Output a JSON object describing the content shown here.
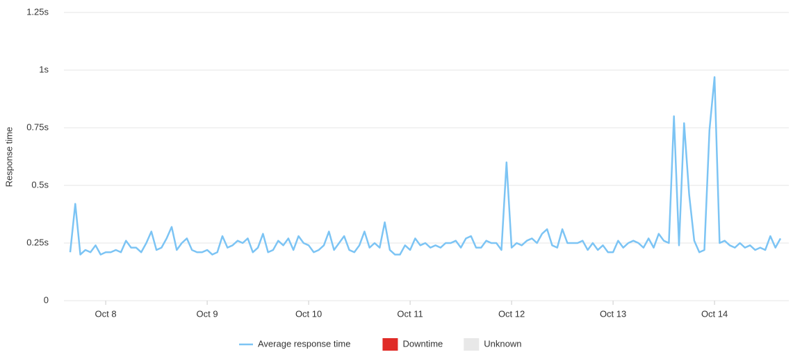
{
  "chart_data": {
    "type": "line",
    "y_label": "Response time",
    "ylim": [
      0,
      1.25
    ],
    "yticks": [
      0,
      {
        "value": 0.25,
        "label": "0.25s"
      },
      {
        "value": 0.5,
        "label": "0.5s"
      },
      {
        "value": 0.75,
        "label": "0.75s"
      },
      {
        "value": 1,
        "label": "1s"
      },
      {
        "value": 1.25,
        "label": "1.25s"
      }
    ],
    "grid": true,
    "categories": [
      null,
      null,
      null,
      null,
      null,
      null,
      null,
      "Oct 8",
      null,
      null,
      null,
      null,
      null,
      null,
      null,
      null,
      null,
      null,
      null,
      null,
      null,
      null,
      null,
      null,
      null,
      null,
      null,
      "Oct 9",
      null,
      null,
      null,
      null,
      null,
      null,
      null,
      null,
      null,
      null,
      null,
      null,
      null,
      null,
      null,
      null,
      null,
      null,
      null,
      "Oct 10",
      null,
      null,
      null,
      null,
      null,
      null,
      null,
      null,
      null,
      null,
      null,
      null,
      null,
      null,
      null,
      null,
      null,
      null,
      null,
      "Oct 11",
      null,
      null,
      null,
      null,
      null,
      null,
      null,
      null,
      null,
      null,
      null,
      null,
      null,
      null,
      null,
      null,
      null,
      null,
      null,
      "Oct 12",
      null,
      null,
      null,
      null,
      null,
      null,
      null,
      null,
      null,
      null,
      null,
      null,
      null,
      null,
      null,
      null,
      null,
      null,
      null,
      "Oct 13",
      null,
      null,
      null,
      null,
      null,
      null,
      null,
      null,
      null,
      null,
      null,
      null,
      null,
      null,
      null,
      null,
      null,
      null,
      null,
      "Oct 14",
      null,
      null,
      null,
      null,
      null,
      null,
      null,
      null,
      null,
      null,
      null,
      null,
      null
    ],
    "series": [
      {
        "name": "Average response time",
        "color": "#7cc4f4",
        "values": [
          0.21,
          0.42,
          0.2,
          0.22,
          0.21,
          0.24,
          0.2,
          0.21,
          0.21,
          0.22,
          0.21,
          0.26,
          0.23,
          0.23,
          0.21,
          0.25,
          0.3,
          0.22,
          0.23,
          0.27,
          0.32,
          0.22,
          0.25,
          0.27,
          0.22,
          0.21,
          0.21,
          0.22,
          0.2,
          0.21,
          0.28,
          0.23,
          0.24,
          0.26,
          0.25,
          0.27,
          0.21,
          0.23,
          0.29,
          0.21,
          0.22,
          0.26,
          0.24,
          0.27,
          0.22,
          0.28,
          0.25,
          0.24,
          0.21,
          0.22,
          0.24,
          0.3,
          0.22,
          0.25,
          0.28,
          0.22,
          0.21,
          0.24,
          0.3,
          0.23,
          0.25,
          0.23,
          0.34,
          0.22,
          0.2,
          0.2,
          0.24,
          0.22,
          0.27,
          0.24,
          0.25,
          0.23,
          0.24,
          0.23,
          0.25,
          0.25,
          0.26,
          0.23,
          0.27,
          0.28,
          0.23,
          0.23,
          0.26,
          0.25,
          0.25,
          0.22,
          0.6,
          0.23,
          0.25,
          0.24,
          0.26,
          0.27,
          0.25,
          0.29,
          0.31,
          0.24,
          0.23,
          0.31,
          0.25,
          0.25,
          0.25,
          0.26,
          0.22,
          0.25,
          0.22,
          0.24,
          0.21,
          0.21,
          0.26,
          0.23,
          0.25,
          0.26,
          0.25,
          0.23,
          0.27,
          0.23,
          0.29,
          0.26,
          0.25,
          0.8,
          0.24,
          0.77,
          0.46,
          0.26,
          0.21,
          0.22,
          0.74,
          0.97,
          0.25,
          0.26,
          0.24,
          0.23,
          0.25,
          0.23,
          0.24,
          0.22,
          0.23,
          0.22,
          0.28,
          0.23,
          0.27
        ]
      }
    ],
    "legend_items": [
      {
        "name": "Downtime",
        "color": "#e02b27"
      },
      {
        "name": "Unknown",
        "color": "#e8e8e8"
      }
    ]
  }
}
